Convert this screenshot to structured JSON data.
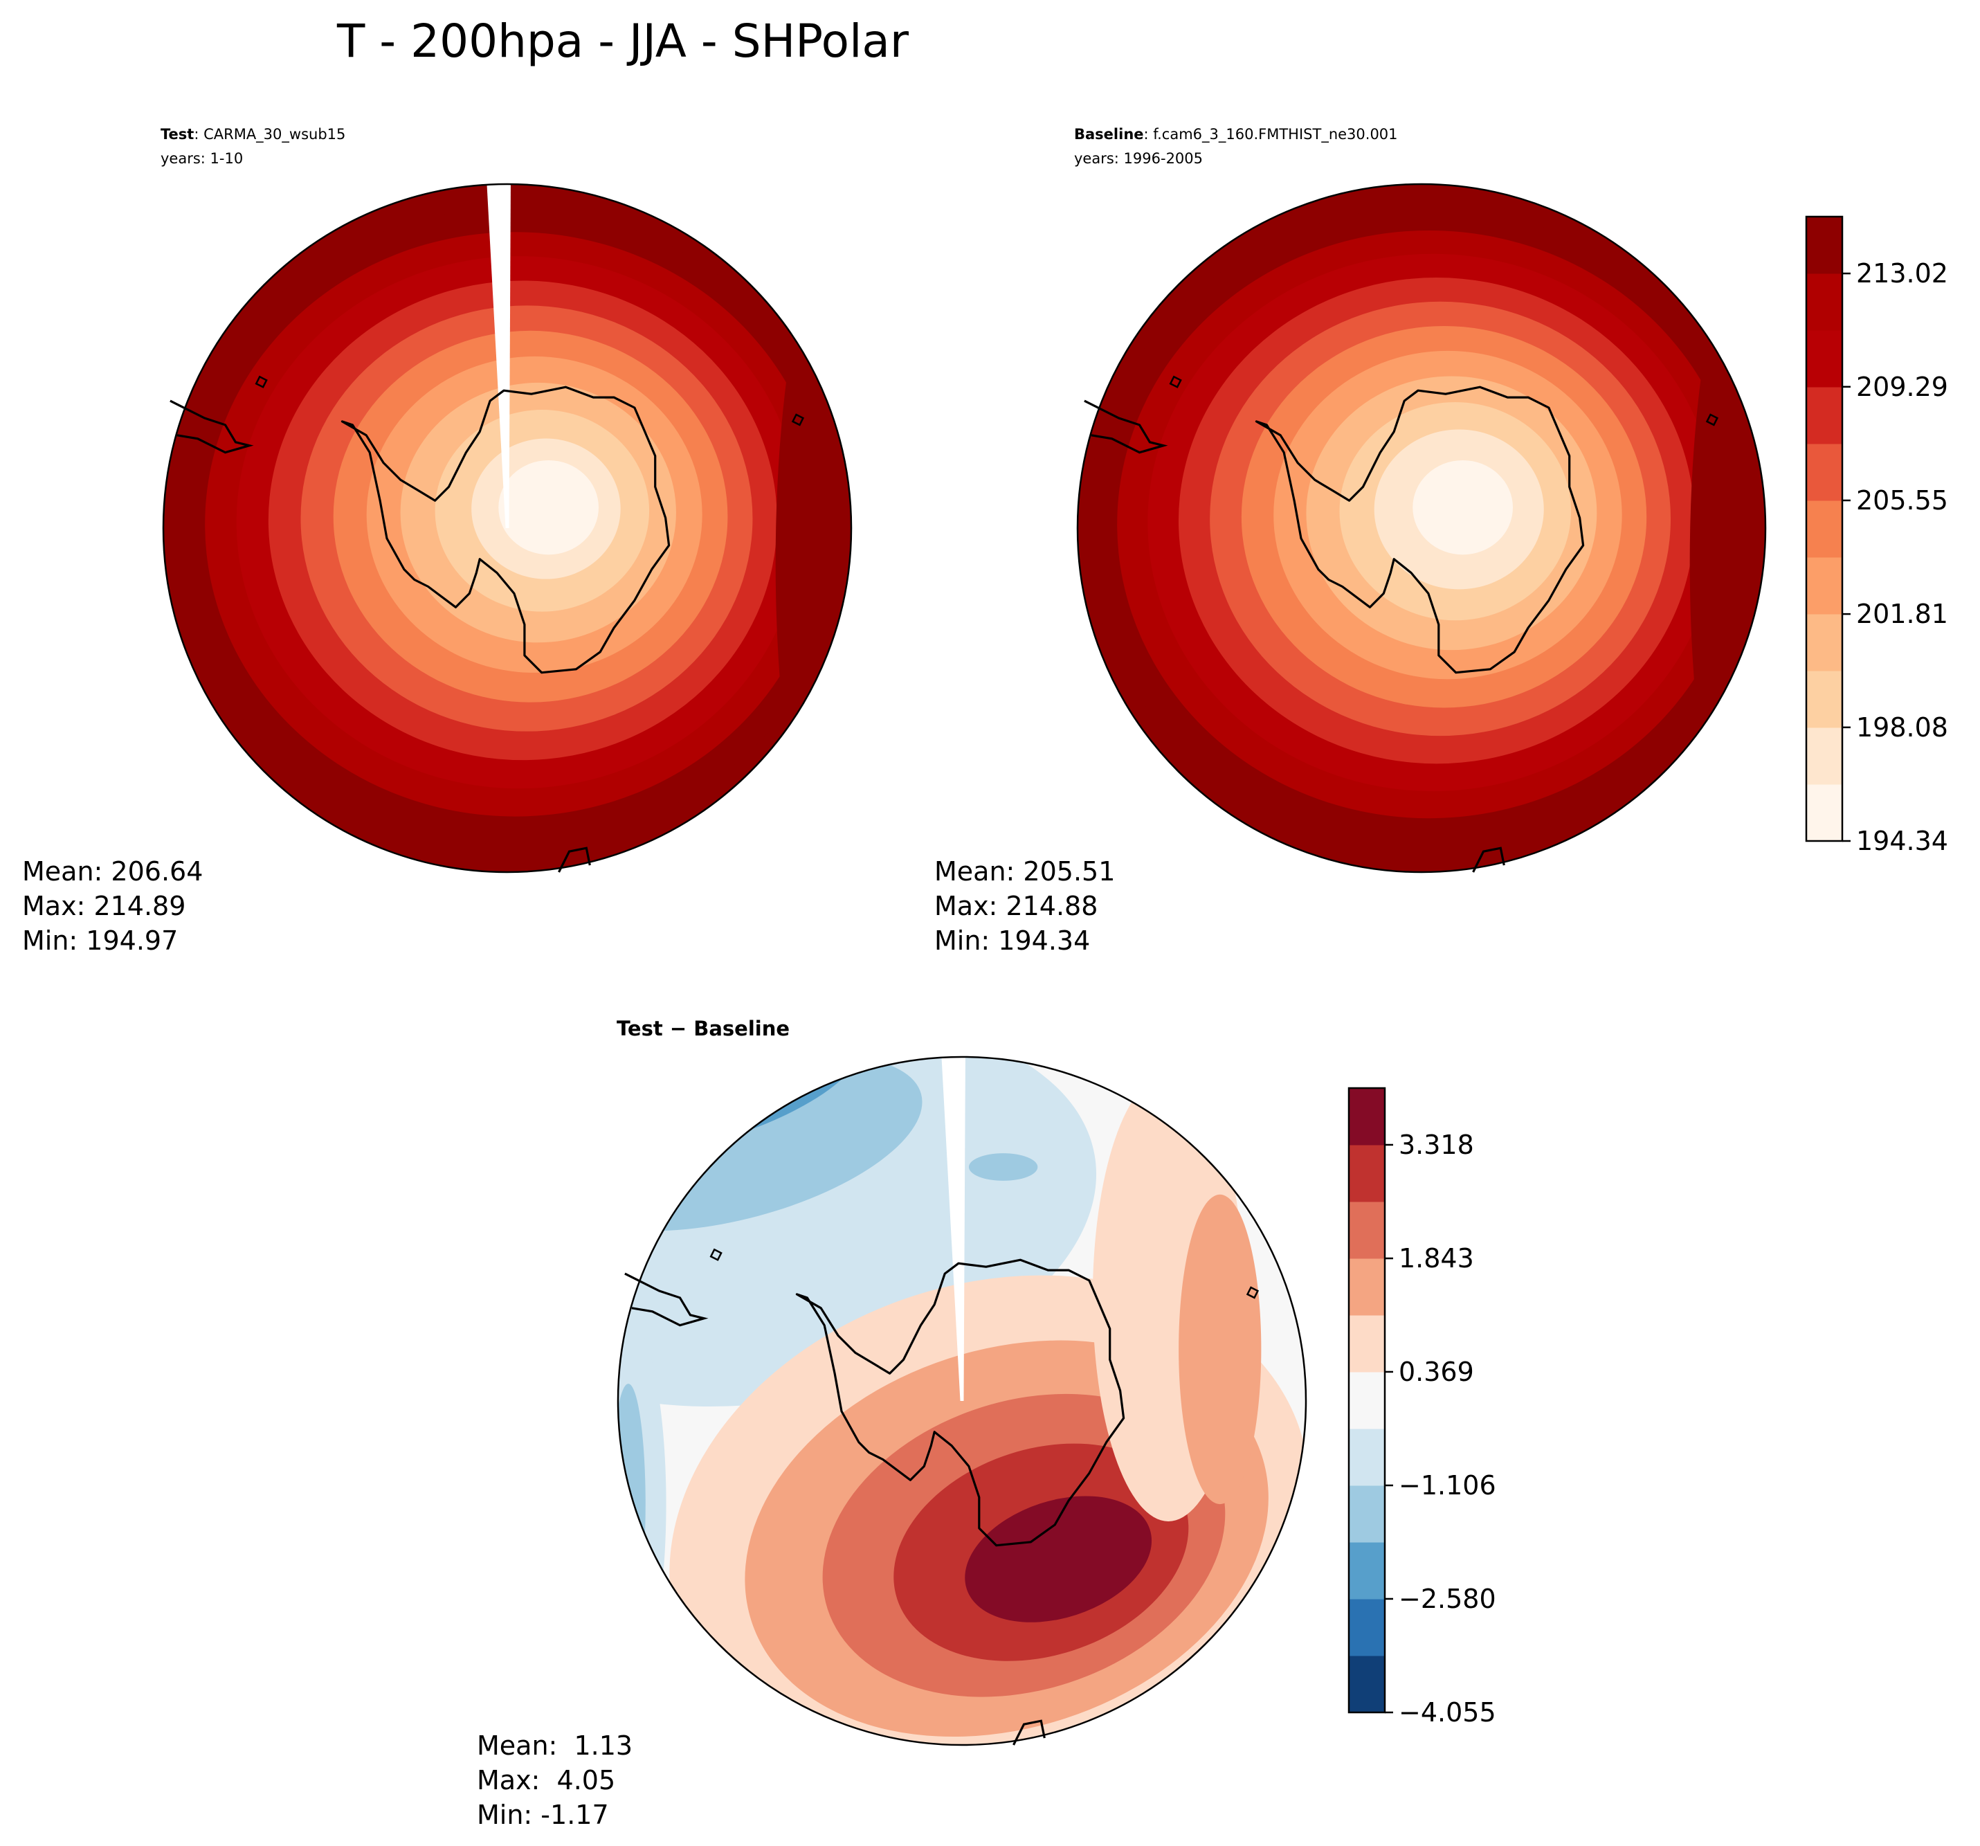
{
  "title": "T - 200hpa - JJA - SHPolar",
  "chart_data": [
    {
      "type": "heatmap",
      "panel": "test",
      "label_bold": "Test",
      "label_rest": ": CARMA_30_wsub15",
      "years": "years: 1-10",
      "levels": [
        194.34,
        196.21,
        198.08,
        199.94,
        201.81,
        203.68,
        205.55,
        207.42,
        209.29,
        211.15,
        213.02,
        214.89
      ],
      "center_value": 194.97,
      "edge_value": 214.89,
      "stats": {
        "mean": "Mean: 206.64",
        "max": "Max: 214.89",
        "min": "Min: 194.97"
      }
    },
    {
      "type": "heatmap",
      "panel": "baseline",
      "label_bold": "Baseline",
      "label_rest": ": f.cam6_3_160.FMTHIST_ne30.001",
      "years": "years: 1996-2005",
      "levels": [
        194.34,
        196.21,
        198.08,
        199.94,
        201.81,
        203.68,
        205.55,
        207.42,
        209.29,
        211.15,
        213.02,
        214.89
      ],
      "center_value": 194.34,
      "edge_value": 214.88,
      "stats": {
        "mean": "Mean: 205.51",
        "max": "Max: 214.88",
        "min": "Min: 194.34"
      },
      "colorbar": {
        "ticks": [
          "213.02",
          "209.29",
          "205.55",
          "201.81",
          "198.08",
          "194.34"
        ],
        "tick_values": [
          213.02,
          209.29,
          205.55,
          201.81,
          198.08,
          194.34
        ],
        "vmin": 194.34,
        "vmax": 214.89,
        "colors": [
          "#fff5eb",
          "#fee6ce",
          "#fdd0a2",
          "#fdba86",
          "#fc9e68",
          "#f6814f",
          "#e9583b",
          "#d42b22",
          "#b80004",
          "#b00000",
          "#8e0000"
        ]
      }
    },
    {
      "type": "heatmap",
      "panel": "diff",
      "label": "Test − Baseline",
      "levels": [
        -4.055,
        -3.318,
        -2.58,
        -1.843,
        -1.106,
        -0.369,
        0.369,
        1.106,
        1.843,
        2.58,
        3.318,
        4.055
      ],
      "stats": {
        "mean": "Mean:  1.13",
        "max": "Max:  4.05",
        "min": "Min: -1.17"
      },
      "colorbar": {
        "ticks": [
          "3.318",
          "1.843",
          "0.369",
          "−1.106",
          "−2.580",
          "−4.055"
        ],
        "tick_values": [
          3.318,
          1.843,
          0.369,
          -1.106,
          -2.58,
          -4.055
        ],
        "vmin": -4.055,
        "vmax": 4.055,
        "colors": [
          "#103f77",
          "#2a72b2",
          "#579fcb",
          "#9ecae1",
          "#d1e5f0",
          "#f7f7f7",
          "#fddbc7",
          "#f4a582",
          "#e06f59",
          "#c0322f",
          "#840b26"
        ]
      }
    }
  ]
}
